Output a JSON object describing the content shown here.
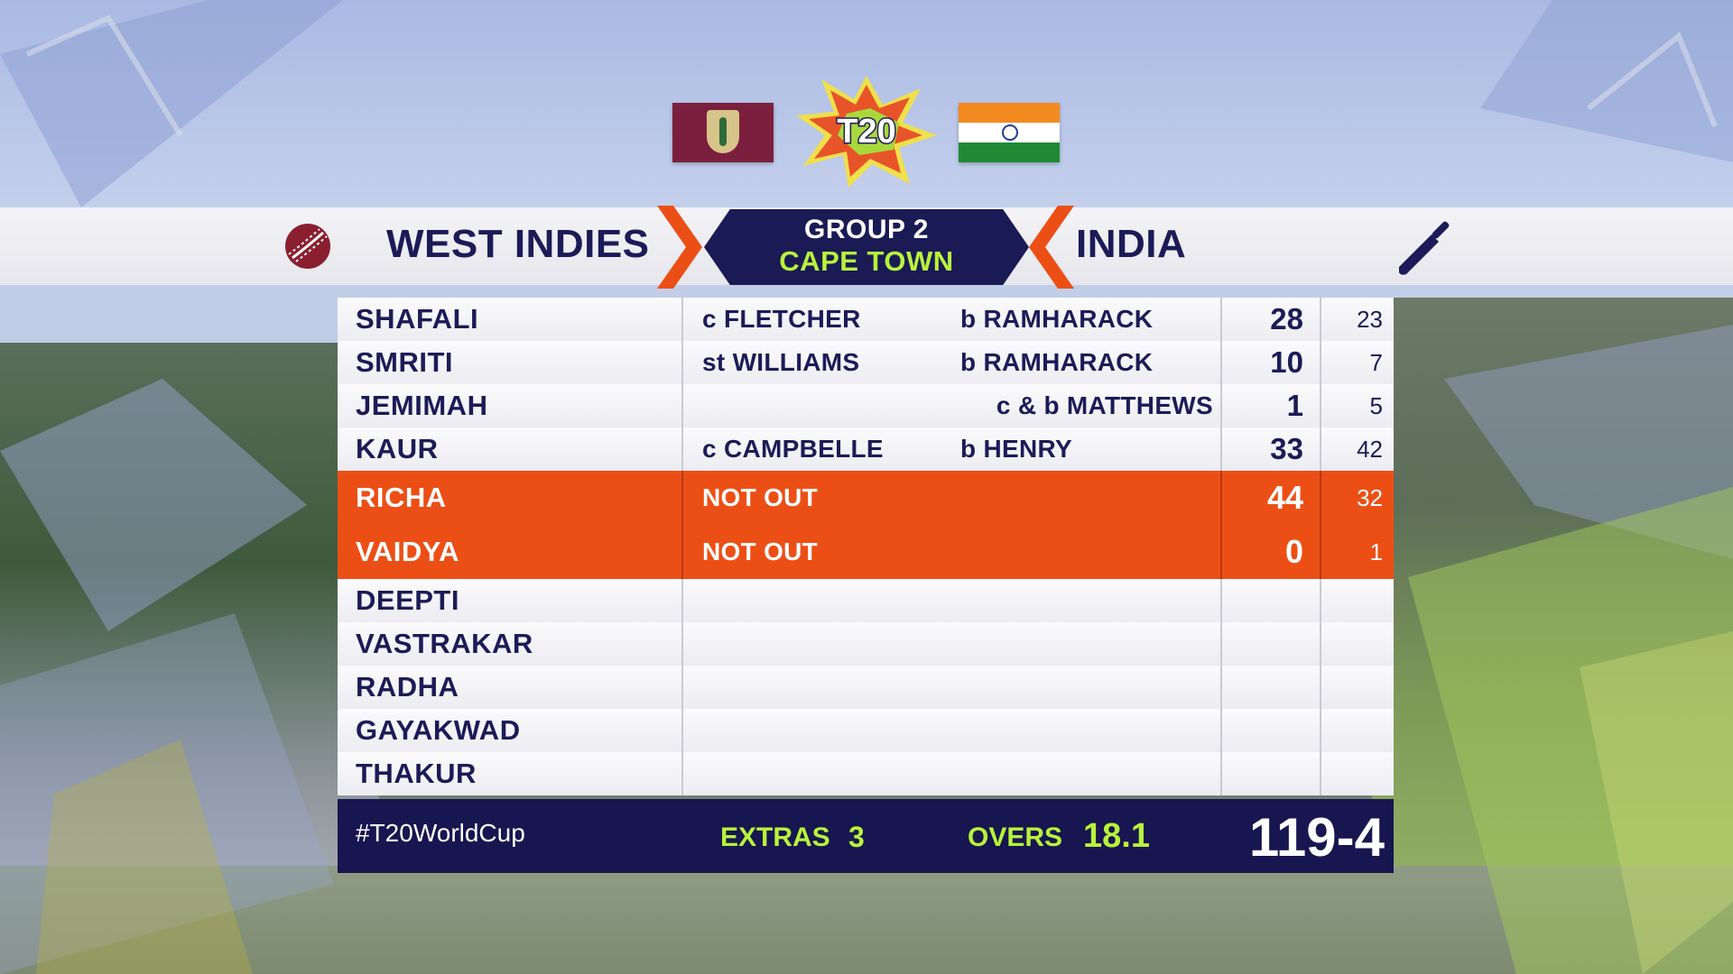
{
  "header": {
    "team_left": "WEST INDIES",
    "team_right": "INDIA",
    "group": "GROUP 2",
    "venue": "CAPE TOWN"
  },
  "batters": [
    {
      "name": "SHAFALI",
      "fielder": "c FLETCHER",
      "bowler": "b RAMHARACK",
      "runs": "28",
      "balls": "23",
      "status": "out"
    },
    {
      "name": "SMRITI",
      "fielder": "st WILLIAMS",
      "bowler": "b RAMHARACK",
      "runs": "10",
      "balls": "7",
      "status": "out"
    },
    {
      "name": "JEMIMAH",
      "fielder": "",
      "bowler": "c & b MATTHEWS",
      "runs": "1",
      "balls": "5",
      "status": "out"
    },
    {
      "name": "KAUR",
      "fielder": "c CAMPBELLE",
      "bowler": "b HENRY",
      "runs": "33",
      "balls": "42",
      "status": "out"
    },
    {
      "name": "RICHA",
      "fielder": "NOT OUT",
      "bowler": "",
      "runs": "44",
      "balls": "32",
      "status": "not_out"
    },
    {
      "name": "VAIDYA",
      "fielder": "NOT OUT",
      "bowler": "",
      "runs": "0",
      "balls": "1",
      "status": "not_out"
    },
    {
      "name": "DEEPTI",
      "fielder": "",
      "bowler": "",
      "runs": "",
      "balls": "",
      "status": "dnb"
    },
    {
      "name": "VASTRAKAR",
      "fielder": "",
      "bowler": "",
      "runs": "",
      "balls": "",
      "status": "dnb"
    },
    {
      "name": "RADHA",
      "fielder": "",
      "bowler": "",
      "runs": "",
      "balls": "",
      "status": "dnb"
    },
    {
      "name": "GAYAKWAD",
      "fielder": "",
      "bowler": "",
      "runs": "",
      "balls": "",
      "status": "dnb"
    },
    {
      "name": "THAKUR",
      "fielder": "",
      "bowler": "",
      "runs": "",
      "balls": "",
      "status": "dnb"
    }
  ],
  "footer": {
    "hashtag": "#T20WorldCup",
    "extras_label": "EXTRAS",
    "extras_value": "3",
    "overs_label": "OVERS",
    "overs_value": "18.1",
    "total": "119-4"
  },
  "colors": {
    "navy": "#1c1b57",
    "highlight": "#ec4f16",
    "lime": "#b8f23a",
    "footer_bg": "#171650"
  },
  "icons": {
    "bowling_team": "cricket-ball-icon",
    "batting_team": "cricket-bat-icon"
  }
}
